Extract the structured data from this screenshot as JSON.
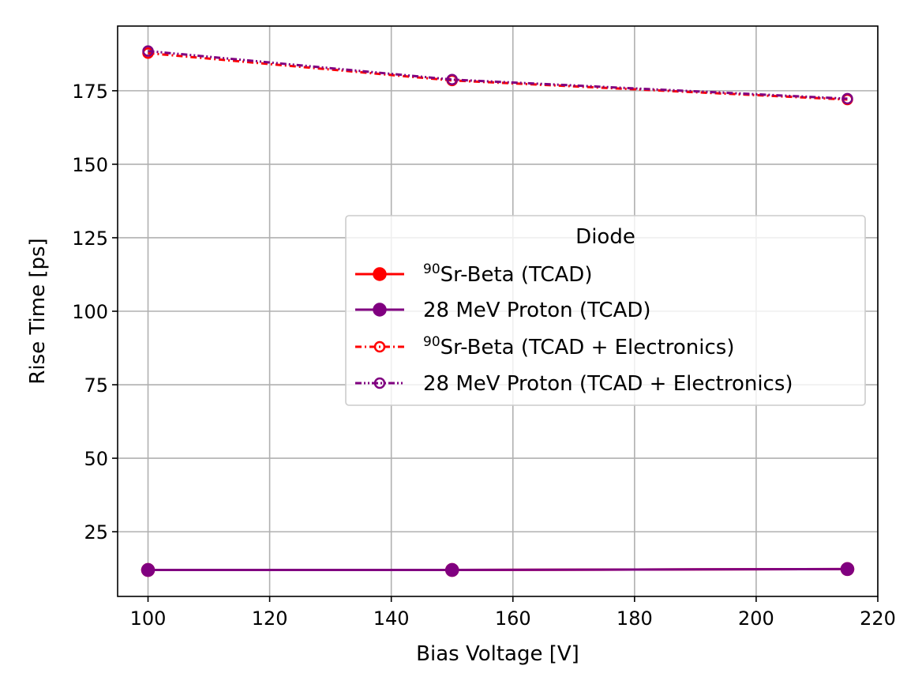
{
  "chart_data": {
    "type": "line",
    "title": "",
    "xlabel": "Bias Voltage [V]",
    "ylabel": "Rise Time [ps]",
    "xlim": [
      95,
      220
    ],
    "ylim": [
      3,
      197
    ],
    "xticks": [
      100,
      120,
      140,
      160,
      180,
      200,
      220
    ],
    "yticks": [
      25,
      50,
      75,
      100,
      125,
      150,
      175
    ],
    "grid": true,
    "legend": {
      "title": "Diode",
      "placement": "center-right"
    },
    "x": [
      100,
      150,
      215
    ],
    "series": [
      {
        "name_sup": "90",
        "name": "Sr-Beta (TCAD)",
        "color": "#ff0000",
        "linestyle": "solid",
        "marker": "filled-circle",
        "values": [
          12,
          12,
          12.3
        ]
      },
      {
        "name_sup": "",
        "name": "28 MeV Proton (TCAD)",
        "color": "#800080",
        "linestyle": "solid",
        "marker": "filled-circle",
        "values": [
          12,
          12,
          12.3
        ]
      },
      {
        "name_sup": "90",
        "name": "Sr-Beta (TCAD + Electronics)",
        "color": "#ff0000",
        "linestyle": "dashdot",
        "marker": "open-circle",
        "values": [
          187.8,
          178.5,
          172
        ]
      },
      {
        "name_sup": "",
        "name": "28 MeV Proton (TCAD + Electronics)",
        "color": "#800080",
        "linestyle": "dashdotdot",
        "marker": "open-circle",
        "values": [
          188.5,
          178.8,
          172.3
        ]
      }
    ]
  }
}
